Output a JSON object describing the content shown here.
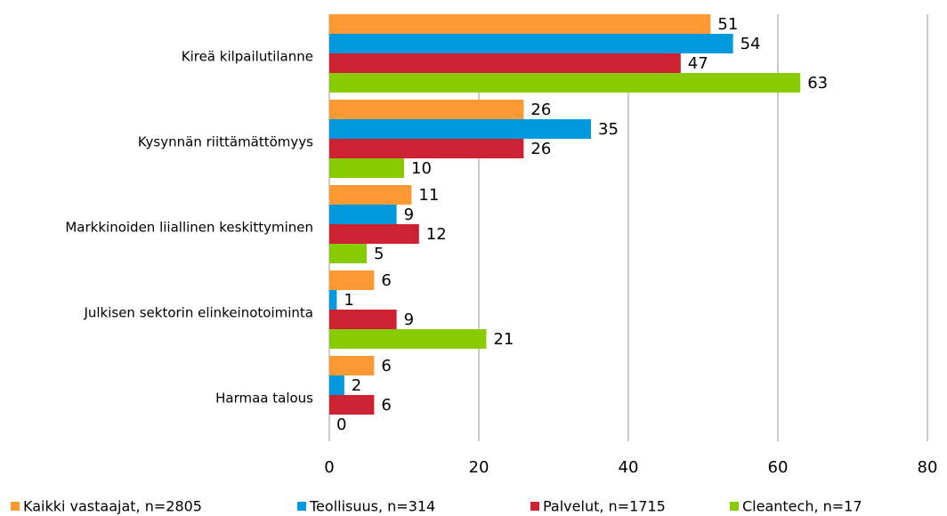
{
  "chart_data": {
    "type": "bar",
    "orientation": "horizontal",
    "categories": [
      "Kireä kilpailutilanne",
      "Kysynnän riittämättömyys",
      "Markkinoiden liiallinen keskittyminen",
      "Julkisen sektorin elinkeinotoiminta",
      "Harmaa talous"
    ],
    "series": [
      {
        "name": "Kaikki vastaajat, n=2805",
        "color": "#ff9933",
        "values": [
          51,
          26,
          11,
          6,
          6
        ]
      },
      {
        "name": "Teollisuus, n=314",
        "color": "#0099dd",
        "values": [
          54,
          35,
          9,
          1,
          2
        ]
      },
      {
        "name": "Palvelut, n=1715",
        "color": "#cc2233",
        "values": [
          47,
          26,
          12,
          9,
          6
        ]
      },
      {
        "name": "Cleantech, n=17",
        "color": "#88cc00",
        "values": [
          63,
          10,
          5,
          21,
          0
        ]
      }
    ],
    "xlim": [
      0,
      80
    ],
    "xticks": [
      0,
      20,
      40,
      60,
      80
    ],
    "grid": true,
    "legend": "bottom"
  }
}
